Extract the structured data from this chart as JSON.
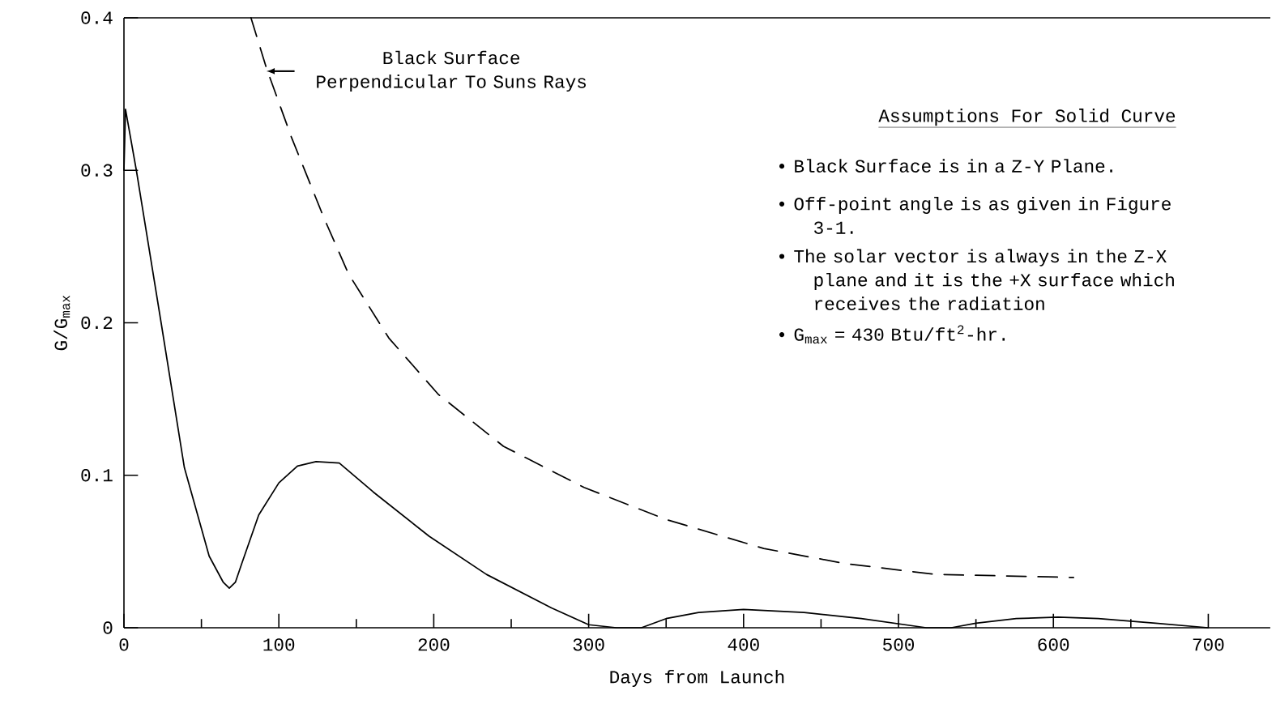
{
  "chart_data": {
    "type": "line",
    "xlabel": "Days from Launch",
    "ylabel": "G/G$_{max}$",
    "xlim": [
      0,
      740
    ],
    "ylim": [
      0,
      0.4
    ],
    "xticks": [
      0,
      {
        "value": 50,
        "label": null
      },
      100,
      {
        "value": 150,
        "label": null
      },
      200,
      {
        "value": 250,
        "label": null
      },
      300,
      {
        "value": 350,
        "label": null
      },
      400,
      {
        "value": 450,
        "label": null
      },
      500,
      {
        "value": 550,
        "label": null
      },
      600,
      {
        "value": 650,
        "label": null
      },
      700
    ],
    "yticks": [
      0,
      0.1,
      0.2,
      0.3,
      0.4
    ],
    "series": [
      {
        "color": "#000000",
        "line_style": "solid",
        "x": [
          0,
          1,
          8,
          24,
          39,
          55,
          64,
          68,
          72,
          76,
          87,
          100,
          112,
          124,
          139,
          161,
          197,
          234,
          276,
          300,
          318,
          334,
          350,
          371,
          400,
          439,
          476,
          518,
          534,
          550,
          576,
          603,
          629,
          666,
          700
        ],
        "values": [
          0.3,
          0.34,
          0.3,
          0.2,
          0.105,
          0.047,
          0.03,
          0.026,
          0.03,
          0.042,
          0.074,
          0.095,
          0.106,
          0.109,
          0.108,
          0.089,
          0.06,
          0.035,
          0.013,
          0.002,
          0,
          0,
          0.006,
          0.01,
          0.012,
          0.01,
          0.006,
          0,
          0,
          0.003,
          0.006,
          0.007,
          0.006,
          0.003,
          0
        ]
      },
      {
        "color": "#000000",
        "line_style": "dashed",
        "x": [
          82,
          92,
          108,
          129,
          145,
          171,
          203,
          245,
          297,
          350,
          413,
          466,
          524,
          613
        ],
        "values": [
          0.4,
          0.367,
          0.322,
          0.269,
          0.232,
          0.19,
          0.153,
          0.119,
          0.092,
          0.071,
          0.052,
          0.042,
          0.035,
          0.033
        ]
      }
    ],
    "annotations": [
      {
        "text": "Black Surface Perpendicular To Suns Rays",
        "x": 92,
        "y": 0.365
      },
      "Assumptions For Solid Curve",
      "• Black Surface is in a Z-Y Plane.",
      "• Off-point angle is as given in Figure 3-1.",
      "• The solar vector is always in the Z-X plane and it is the +X surface which receives the radiation",
      "• G$_{max}$ = 430 Btu/ft$^{2}$-hr."
    ]
  }
}
